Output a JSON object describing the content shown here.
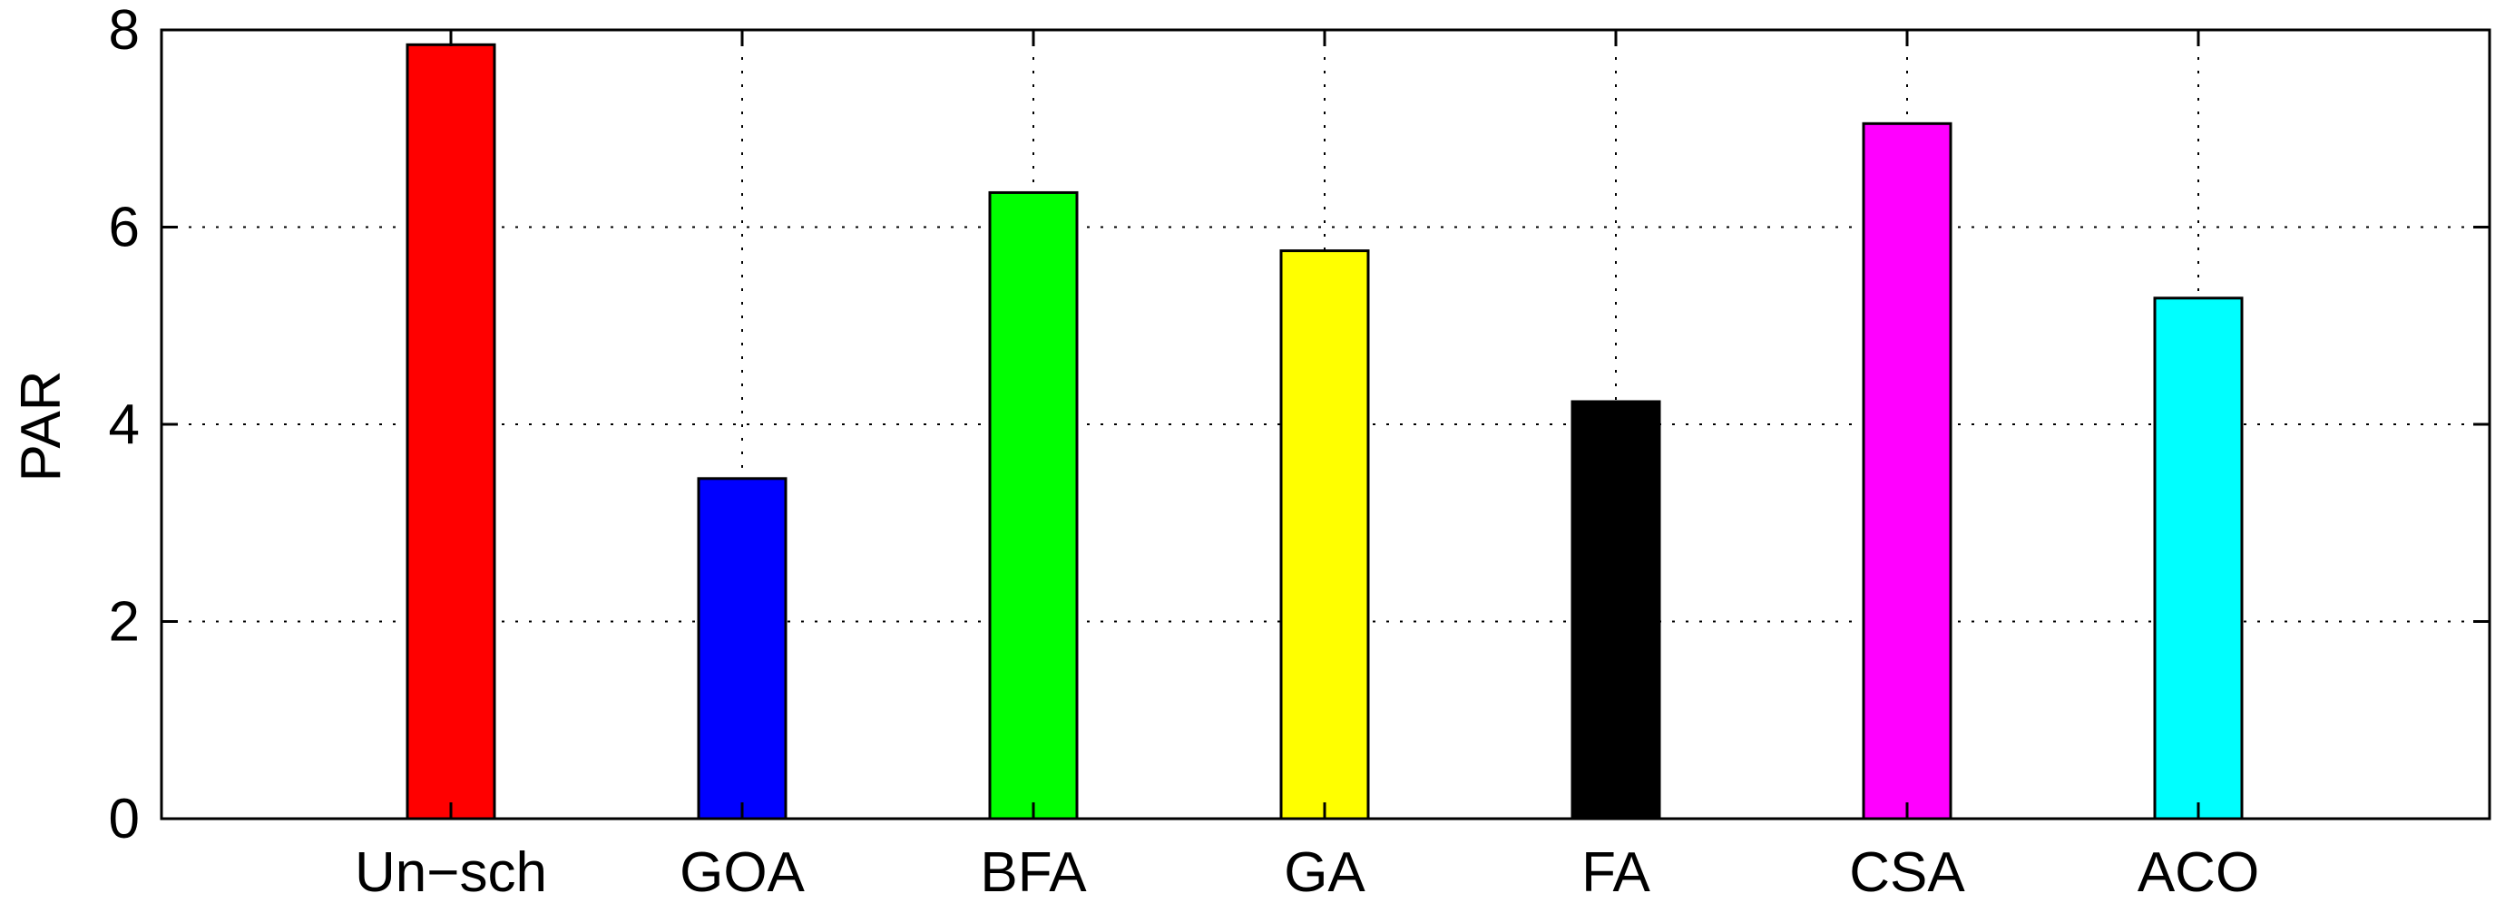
{
  "chart_data": {
    "type": "bar",
    "title": "",
    "xlabel": "",
    "ylabel": "PAR",
    "categories": [
      "Un−sch",
      "GOA",
      "BFA",
      "GA",
      "FA",
      "CSA",
      "ACO"
    ],
    "values": [
      7.85,
      3.45,
      6.35,
      5.76,
      4.23,
      7.05,
      5.28
    ],
    "colors": [
      "#ff0000",
      "#0000ff",
      "#00ff00",
      "#ffff00",
      "#000000",
      "#ff00ff",
      "#00ffff"
    ],
    "ylim": [
      0,
      8
    ],
    "yticks": [
      "0",
      "2",
      "4",
      "6",
      "8"
    ],
    "grid": true,
    "legend": "none"
  }
}
